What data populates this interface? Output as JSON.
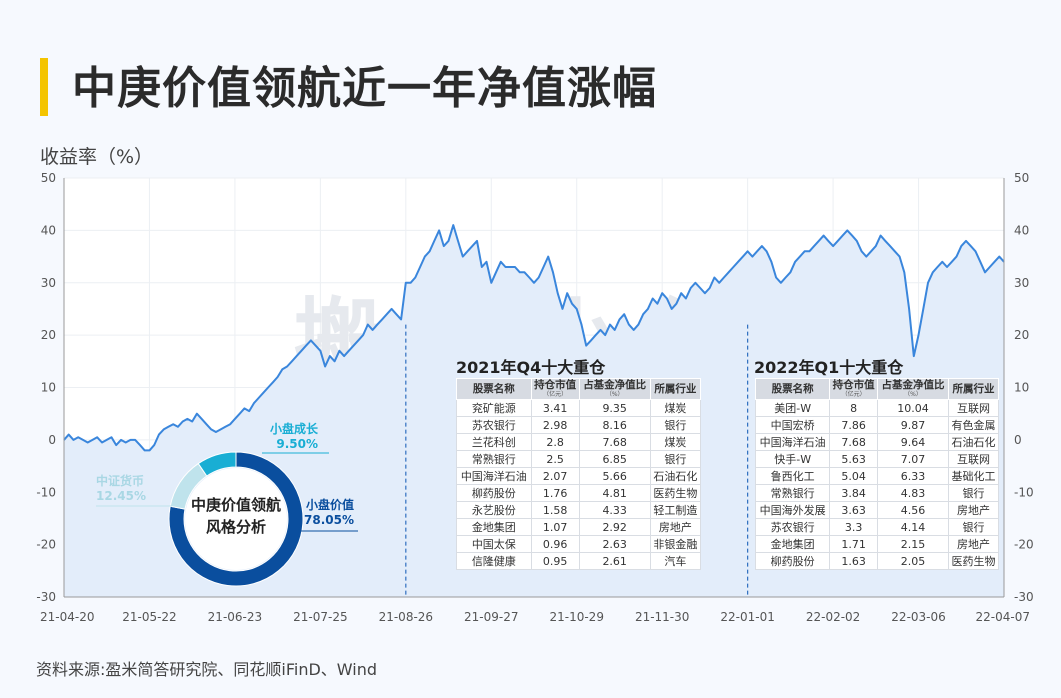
{
  "title": "中庚价值领航近一年净值涨幅",
  "ylabel": "收益率（%）",
  "source": "资料来源:盈米简答研究院、同花顺iFinD、Wind",
  "watermark": "搬砖小组",
  "chart_data": {
    "type": "area",
    "title": "中庚价值领航近一年净值涨幅",
    "ylabel": "收益率（%）",
    "ylim": [
      -30,
      50
    ],
    "yticks": [
      50,
      40,
      30,
      20,
      10,
      0,
      -10,
      -20,
      -30
    ],
    "xticks": [
      "21-04-20",
      "21-05-22",
      "21-06-23",
      "21-07-25",
      "21-08-26",
      "21-09-27",
      "21-10-29",
      "21-11-30",
      "22-01-01",
      "22-02-02",
      "22-03-06",
      "22-04-07"
    ],
    "x_start": "21-04-20",
    "x_end": "22-04-07",
    "markers": [
      "21-08-26",
      "22-01-01"
    ],
    "series": [
      {
        "color": "#3a86dc",
        "values": [
          0,
          1,
          0,
          0.5,
          0,
          -0.5,
          0,
          0.5,
          -0.5,
          0,
          0.5,
          -1,
          0,
          -0.5,
          0,
          0,
          -1,
          -2,
          -2,
          -1,
          1,
          2,
          2.5,
          3,
          2.5,
          3.5,
          4,
          3.5,
          5,
          4,
          3,
          2,
          1.5,
          2,
          2.5,
          3,
          4,
          5,
          6,
          5.5,
          7,
          8,
          9,
          10,
          11,
          12,
          13.5,
          14,
          15,
          16,
          17,
          18,
          19,
          18,
          17,
          14,
          16,
          15,
          17,
          16,
          17,
          18,
          19,
          20,
          22,
          21,
          22,
          23,
          24,
          25,
          24,
          23,
          30,
          30,
          31,
          33,
          35,
          36,
          38,
          40,
          37,
          38,
          41,
          38,
          35,
          36,
          37,
          38,
          33,
          34,
          30,
          32,
          34,
          33,
          33,
          33,
          32,
          32,
          31,
          30,
          31,
          33,
          35,
          32,
          28,
          25,
          28,
          26,
          25,
          22,
          18,
          19,
          20,
          21,
          20,
          22,
          21,
          23,
          24,
          22,
          21,
          22,
          24,
          25,
          27,
          26,
          28,
          27,
          25,
          26,
          28,
          27,
          29,
          30,
          29,
          28,
          29,
          31,
          30,
          31,
          32,
          33,
          34,
          35,
          36,
          35,
          36,
          37,
          36,
          34,
          31,
          30,
          31,
          32,
          34,
          35,
          36,
          36,
          37,
          38,
          39,
          38,
          37,
          38,
          39,
          40,
          39,
          38,
          36,
          35,
          36,
          37,
          39,
          38,
          37,
          36,
          35,
          32,
          25,
          16,
          20,
          25,
          30,
          32,
          33,
          34,
          33,
          34,
          35,
          37,
          38,
          37,
          36,
          34,
          32,
          33,
          34,
          35,
          34
        ],
        "fill": "#e3edfa"
      }
    ]
  },
  "donut": {
    "center_line1": "中庚价值领航",
    "center_line2": "风格分析",
    "slices": [
      {
        "name": "小盘价值",
        "value": "78.05%",
        "share": 78.05,
        "color": "#0a4e9e"
      },
      {
        "name": "中证货币",
        "value": "12.45%",
        "share": 12.45,
        "color": "#bfe3ec"
      },
      {
        "name": "小盘成长",
        "value": "9.50%",
        "share": 9.5,
        "color": "#19aed4"
      }
    ]
  },
  "holdings_q4": {
    "title": "2021年Q4十大重仓",
    "headers": [
      "股票名称",
      "持仓市值",
      "占基金净值比",
      "所属行业"
    ],
    "subheaders": [
      "",
      "（亿元）",
      "（%）",
      ""
    ],
    "rows": [
      [
        "兖矿能源",
        "3.41",
        "9.35",
        "煤炭"
      ],
      [
        "苏农银行",
        "2.98",
        "8.16",
        "银行"
      ],
      [
        "兰花科创",
        "2.8",
        "7.68",
        "煤炭"
      ],
      [
        "常熟银行",
        "2.5",
        "6.85",
        "银行"
      ],
      [
        "中国海洋石油",
        "2.07",
        "5.66",
        "石油石化"
      ],
      [
        "柳药股份",
        "1.76",
        "4.81",
        "医药生物"
      ],
      [
        "永艺股份",
        "1.58",
        "4.33",
        "轻工制造"
      ],
      [
        "金地集团",
        "1.07",
        "2.92",
        "房地产"
      ],
      [
        "中国太保",
        "0.96",
        "2.63",
        "非银金融"
      ],
      [
        "信隆健康",
        "0.95",
        "2.61",
        "汽车"
      ]
    ]
  },
  "holdings_q1": {
    "title": "2022年Q1十大重仓",
    "headers": [
      "股票名称",
      "持仓市值",
      "占基金净值比",
      "所属行业"
    ],
    "subheaders": [
      "",
      "（亿元）",
      "（%）",
      ""
    ],
    "rows": [
      [
        "美团-W",
        "8",
        "10.04",
        "互联网"
      ],
      [
        "中国宏桥",
        "7.86",
        "9.87",
        "有色金属"
      ],
      [
        "中国海洋石油",
        "7.68",
        "9.64",
        "石油石化"
      ],
      [
        "快手-W",
        "5.63",
        "7.07",
        "互联网"
      ],
      [
        "鲁西化工",
        "5.04",
        "6.33",
        "基础化工"
      ],
      [
        "常熟银行",
        "3.84",
        "4.83",
        "银行"
      ],
      [
        "中国海外发展",
        "3.63",
        "4.56",
        "房地产"
      ],
      [
        "苏农银行",
        "3.3",
        "4.14",
        "银行"
      ],
      [
        "金地集团",
        "1.71",
        "2.15",
        "房地产"
      ],
      [
        "柳药股份",
        "1.63",
        "2.05",
        "医药生物"
      ]
    ]
  }
}
